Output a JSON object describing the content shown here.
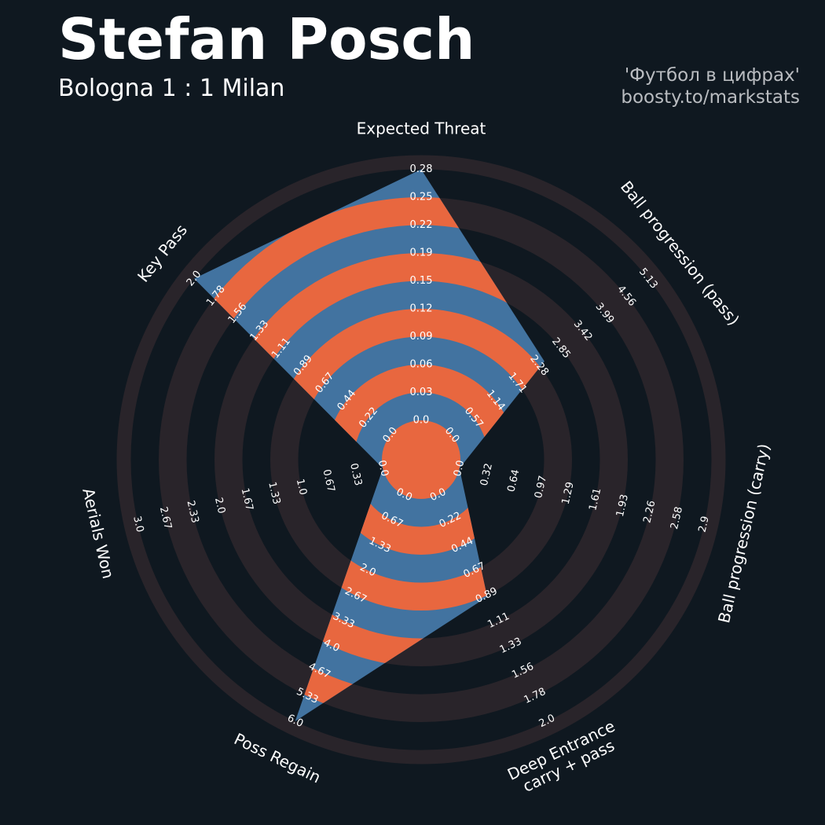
{
  "header": {
    "player": "Stefan Posch",
    "match": "Bologna 1 : 1 Milan",
    "credit_line1": "'Футбол в цифрах'",
    "credit_line2": "boosty.to/markstats"
  },
  "colors": {
    "background": "#0f1820",
    "ring_dark": "#29242a",
    "fill_blue": "#4273a0",
    "fill_orange": "#e8673f",
    "text": "#ffffff",
    "credit": "#b9bcc0"
  },
  "chart_data": {
    "type": "radar",
    "title": "Stefan Posch",
    "subtitle": "Bologna 1 : 1 Milan",
    "axes": [
      {
        "label": "Expected Threat",
        "label_lines": [
          "Expected Threat"
        ],
        "min": 0.0,
        "max": 0.28,
        "ticks": [
          "0.0",
          "0.03",
          "0.06",
          "0.09",
          "0.12",
          "0.15",
          "0.19",
          "0.22",
          "0.25",
          "0.28"
        ]
      },
      {
        "label": "Ball progression (pass)",
        "label_lines": [
          "Ball progression (pass)"
        ],
        "min": 0.0,
        "max": 5.13,
        "ticks": [
          "0.0",
          "0.57",
          "1.14",
          "1.71",
          "2.28",
          "2.85",
          "3.42",
          "3.99",
          "4.56",
          "5.13"
        ]
      },
      {
        "label": "Ball progression (carry)",
        "label_lines": [
          "Ball progression (carry)"
        ],
        "min": 0.0,
        "max": 2.9,
        "ticks": [
          "0.0",
          "0.32",
          "0.64",
          "0.97",
          "1.29",
          "1.61",
          "1.93",
          "2.26",
          "2.58",
          "2.9"
        ]
      },
      {
        "label": "Deep Entrance carry + pass",
        "label_lines": [
          "Deep Entrance",
          "carry + pass"
        ],
        "min": 0.0,
        "max": 2.0,
        "ticks": [
          "0.0",
          "0.22",
          "0.44",
          "0.67",
          "0.89",
          "1.11",
          "1.33",
          "1.56",
          "1.78",
          "2.0"
        ]
      },
      {
        "label": "Poss Regain",
        "label_lines": [
          "Poss Regain"
        ],
        "min": 0.0,
        "max": 6.0,
        "ticks": [
          "0.0",
          "0.67",
          "1.33",
          "2.0",
          "2.67",
          "3.33",
          "4.0",
          "4.67",
          "5.33",
          "6.0"
        ]
      },
      {
        "label": "Aerials Won",
        "label_lines": [
          "Aerials Won"
        ],
        "min": 0.0,
        "max": 3.0,
        "ticks": [
          "0.0",
          "0.33",
          "0.67",
          "1.0",
          "1.33",
          "1.67",
          "2.0",
          "2.33",
          "2.67",
          "3.0"
        ]
      },
      {
        "label": "Key Pass",
        "label_lines": [
          "Key Pass"
        ],
        "min": 0.0,
        "max": 2.0,
        "ticks": [
          "0.0",
          "0.22",
          "0.44",
          "0.67",
          "0.89",
          "1.11",
          "1.33",
          "1.56",
          "1.78",
          "2.0"
        ]
      }
    ],
    "series": [
      {
        "name": "Stefan Posch",
        "values": [
          0.28,
          2.42,
          0.0,
          0.9,
          6.0,
          0.0,
          2.0
        ]
      }
    ]
  }
}
